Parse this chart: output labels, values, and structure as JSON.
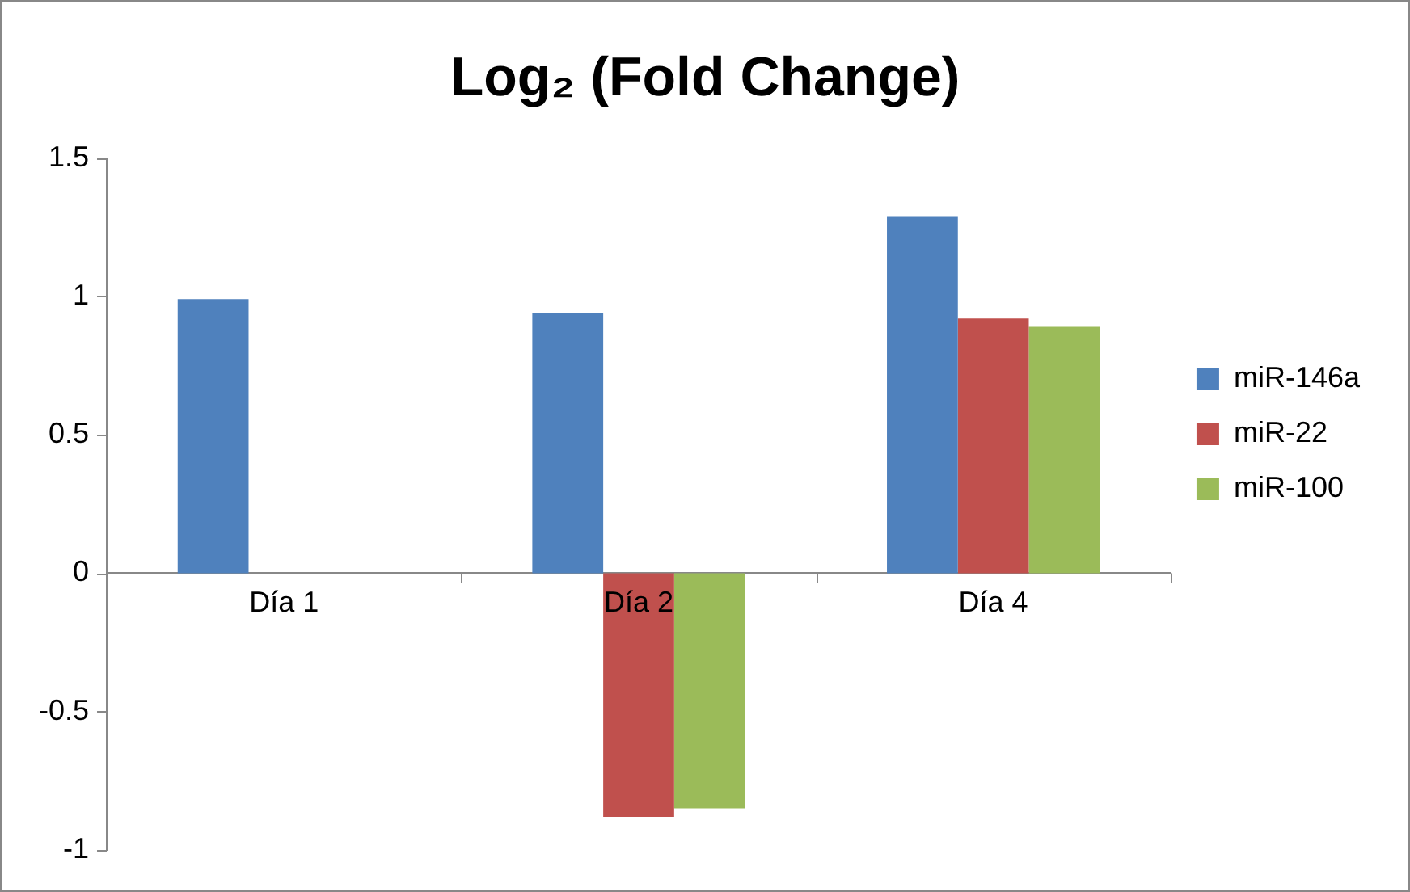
{
  "chart_data": {
    "type": "bar",
    "title": "Log₂ (Fold Change)",
    "categories": [
      "Día 1",
      "Día 2",
      "Día 4"
    ],
    "series": [
      {
        "name": "miR-146a",
        "color": "#4f81bd",
        "values": [
          0.99,
          0.94,
          1.29
        ]
      },
      {
        "name": "miR-22",
        "color": "#c0504d",
        "values": [
          0,
          -0.88,
          0.92
        ]
      },
      {
        "name": "miR-100",
        "color": "#9bbb59",
        "values": [
          0,
          -0.85,
          0.89
        ]
      }
    ],
    "ylim": [
      -1,
      1.5
    ],
    "yticks": [
      -1,
      -0.5,
      0,
      0.5,
      1,
      1.5
    ],
    "grid": false,
    "legend": "right"
  }
}
